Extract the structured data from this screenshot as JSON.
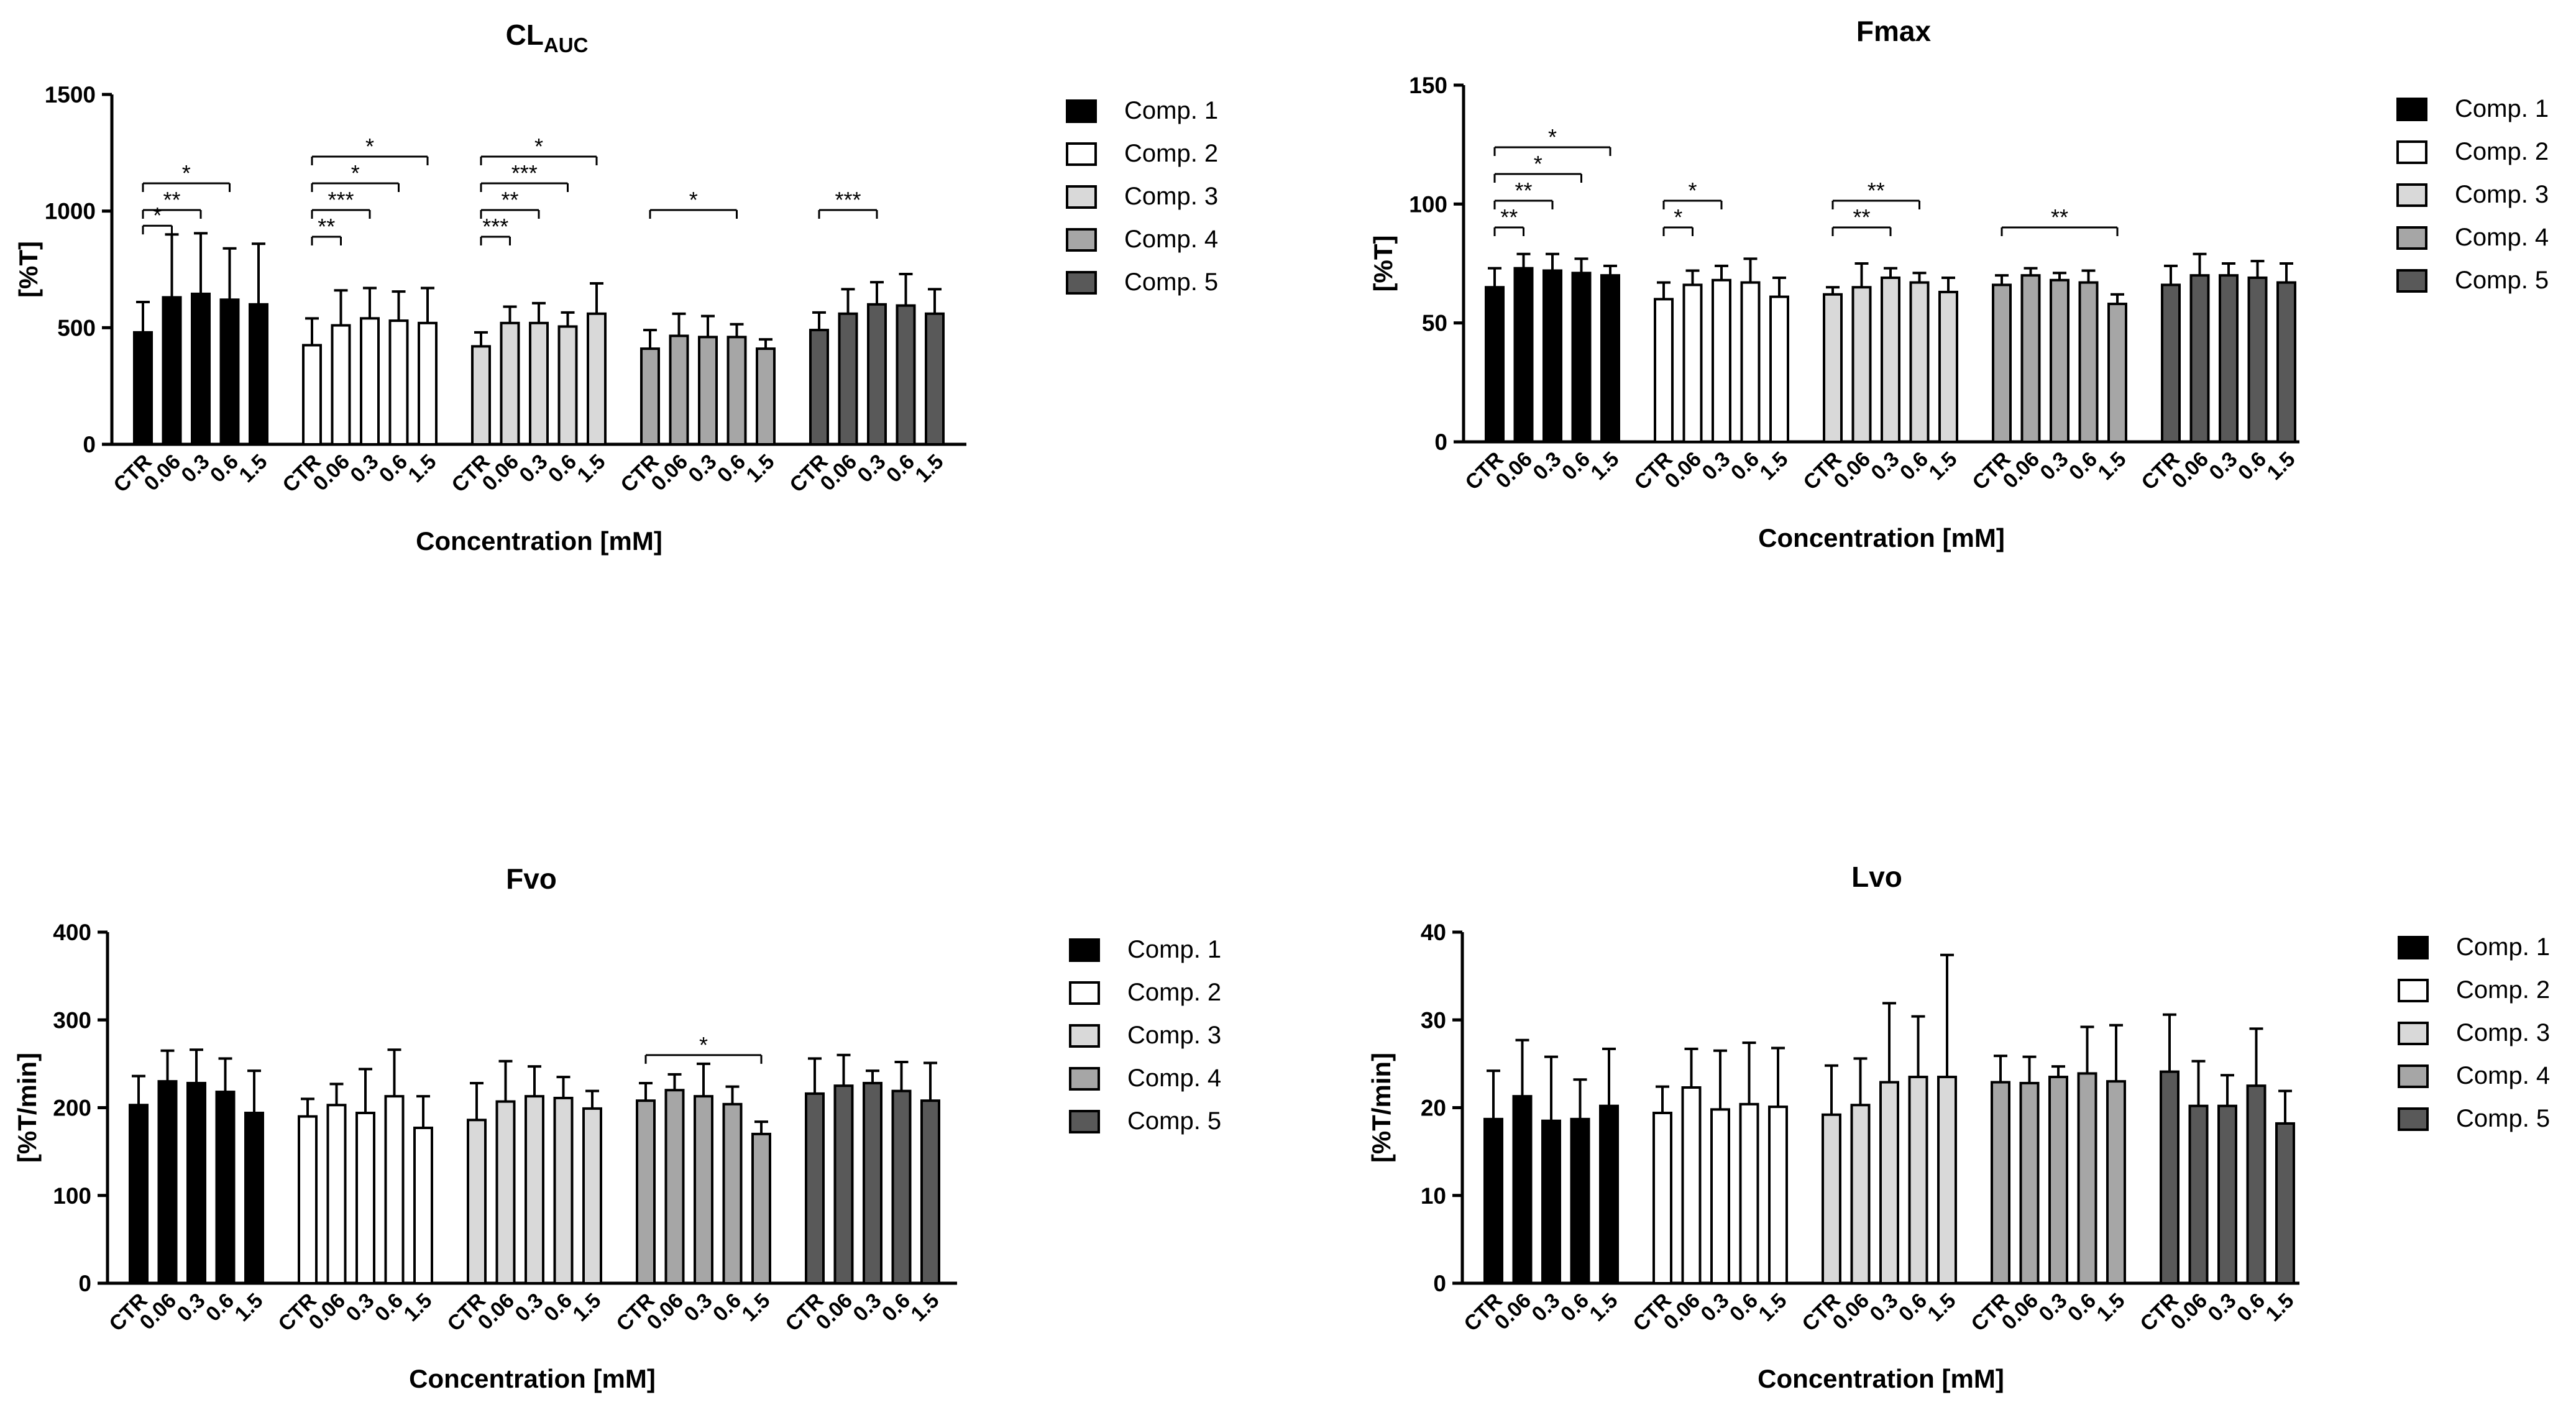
{
  "colors": {
    "Comp. 1": "#000000",
    "Comp. 2": "#ffffff",
    "Comp. 3": "#d9d9d9",
    "Comp. 4": "#a6a6a6",
    "Comp. 5": "#595959"
  },
  "chart_data": [
    {
      "id": "clauc",
      "type": "bar",
      "title_main": "CL",
      "title_sub": "AUC",
      "xlabel": "Concentration [mM]",
      "ylabel": "[%T]",
      "ylim": [
        0,
        1500
      ],
      "yticks": [
        "0",
        "500",
        "1000",
        "1500"
      ],
      "categories": [
        "CTR",
        "0.06",
        "0.3",
        "0.6",
        "1.5"
      ],
      "legend": [
        "Comp. 1",
        "Comp. 2",
        "Comp. 3",
        "Comp. 4",
        "Comp. 5"
      ],
      "series": [
        {
          "name": "Comp. 1",
          "values": [
            480,
            630,
            645,
            620,
            600
          ],
          "errors": [
            130,
            270,
            260,
            220,
            260
          ]
        },
        {
          "name": "Comp. 2",
          "values": [
            425,
            510,
            540,
            530,
            520
          ],
          "errors": [
            115,
            150,
            130,
            125,
            150
          ]
        },
        {
          "name": "Comp. 3",
          "values": [
            420,
            520,
            520,
            505,
            560
          ],
          "errors": [
            60,
            70,
            85,
            60,
            130
          ]
        },
        {
          "name": "Comp. 4",
          "values": [
            410,
            465,
            460,
            460,
            410
          ],
          "errors": [
            80,
            95,
            90,
            55,
            40
          ]
        },
        {
          "name": "Comp. 5",
          "values": [
            490,
            560,
            600,
            595,
            560
          ],
          "errors": [
            75,
            105,
            95,
            135,
            105
          ]
        }
      ],
      "significance": [
        {
          "group": 0,
          "from": 0,
          "to": 1,
          "level": 0,
          "label": "*"
        },
        {
          "group": 0,
          "from": 0,
          "to": 2,
          "level": 1,
          "label": "**"
        },
        {
          "group": 0,
          "from": 0,
          "to": 3,
          "level": 2,
          "label": "*"
        },
        {
          "group": 1,
          "from": 0,
          "to": 1,
          "level": 0,
          "label": "**"
        },
        {
          "group": 1,
          "from": 0,
          "to": 2,
          "level": 1,
          "label": "***"
        },
        {
          "group": 1,
          "from": 0,
          "to": 3,
          "level": 2,
          "label": "*"
        },
        {
          "group": 1,
          "from": 0,
          "to": 4,
          "level": 3,
          "label": "*"
        },
        {
          "group": 2,
          "from": 0,
          "to": 1,
          "level": 0,
          "label": "***"
        },
        {
          "group": 2,
          "from": 0,
          "to": 2,
          "level": 1,
          "label": "**"
        },
        {
          "group": 2,
          "from": 0,
          "to": 3,
          "level": 2,
          "label": "***"
        },
        {
          "group": 2,
          "from": 0,
          "to": 4,
          "level": 3,
          "label": "*"
        },
        {
          "group": 3,
          "from": 0,
          "to": 3,
          "level": 1,
          "label": "*"
        },
        {
          "group": 4,
          "from": 0,
          "to": 2,
          "level": 1,
          "label": "***"
        }
      ]
    },
    {
      "id": "fmax",
      "type": "bar",
      "title_main": "Fmax",
      "title_sub": "",
      "xlabel": "Concentration [mM]",
      "ylabel": "[%T]",
      "ylim": [
        0,
        150
      ],
      "yticks": [
        "0",
        "50",
        "100",
        "150"
      ],
      "categories": [
        "CTR",
        "0.06",
        "0.3",
        "0.6",
        "1.5"
      ],
      "legend": [
        "Comp. 1",
        "Comp. 2",
        "Comp. 3",
        "Comp. 4",
        "Comp. 5"
      ],
      "series": [
        {
          "name": "Comp. 1",
          "values": [
            65,
            73,
            72,
            71,
            70
          ],
          "errors": [
            8,
            6,
            7,
            6,
            4
          ]
        },
        {
          "name": "Comp. 2",
          "values": [
            60,
            66,
            68,
            67,
            61
          ],
          "errors": [
            7,
            6,
            6,
            10,
            8
          ]
        },
        {
          "name": "Comp. 3",
          "values": [
            62,
            65,
            69,
            67,
            63
          ],
          "errors": [
            3,
            10,
            4,
            4,
            6
          ]
        },
        {
          "name": "Comp. 4",
          "values": [
            66,
            70,
            68,
            67,
            58
          ],
          "errors": [
            4,
            3,
            3,
            5,
            4
          ]
        },
        {
          "name": "Comp. 5",
          "values": [
            66,
            70,
            70,
            69,
            67
          ],
          "errors": [
            8,
            9,
            5,
            7,
            8
          ]
        }
      ],
      "significance": [
        {
          "group": 0,
          "from": 0,
          "to": 1,
          "level": 0,
          "label": "**"
        },
        {
          "group": 0,
          "from": 0,
          "to": 2,
          "level": 1,
          "label": "**"
        },
        {
          "group": 0,
          "from": 0,
          "to": 3,
          "level": 2,
          "label": "*"
        },
        {
          "group": 0,
          "from": 0,
          "to": 4,
          "level": 3,
          "label": "*"
        },
        {
          "group": 1,
          "from": 0,
          "to": 1,
          "level": 0,
          "label": "*"
        },
        {
          "group": 1,
          "from": 0,
          "to": 2,
          "level": 1,
          "label": "*"
        },
        {
          "group": 2,
          "from": 0,
          "to": 2,
          "level": 0,
          "label": "**"
        },
        {
          "group": 2,
          "from": 0,
          "to": 3,
          "level": 1,
          "label": "**"
        },
        {
          "group": 3,
          "from": 0,
          "to": 4,
          "level": 0,
          "label": "**"
        }
      ]
    },
    {
      "id": "fvo",
      "type": "bar",
      "title_main": "Fvo",
      "title_sub": "",
      "xlabel": "Concentration [mM]",
      "ylabel": "[%T/min]",
      "ylim": [
        0,
        400
      ],
      "yticks": [
        "0",
        "100",
        "200",
        "300",
        "400"
      ],
      "categories": [
        "CTR",
        "0.06",
        "0.3",
        "0.6",
        "1.5"
      ],
      "legend": [
        "Comp. 1",
        "Comp. 2",
        "Comp. 3",
        "Comp. 4",
        "Comp. 5"
      ],
      "series": [
        {
          "name": "Comp. 1",
          "values": [
            203,
            230,
            228,
            218,
            194
          ],
          "errors": [
            33,
            35,
            38,
            38,
            48
          ]
        },
        {
          "name": "Comp. 2",
          "values": [
            190,
            203,
            194,
            213,
            177
          ],
          "errors": [
            20,
            24,
            50,
            53,
            36
          ]
        },
        {
          "name": "Comp. 3",
          "values": [
            186,
            207,
            213,
            211,
            199
          ],
          "errors": [
            42,
            46,
            34,
            24,
            20
          ]
        },
        {
          "name": "Comp. 4",
          "values": [
            208,
            220,
            213,
            204,
            170
          ],
          "errors": [
            20,
            18,
            37,
            20,
            14
          ]
        },
        {
          "name": "Comp. 5",
          "values": [
            216,
            225,
            228,
            219,
            208
          ],
          "errors": [
            40,
            35,
            14,
            33,
            43
          ]
        }
      ],
      "significance": [
        {
          "group": 3,
          "from": 0,
          "to": 4,
          "level": 0,
          "label": "*"
        }
      ]
    },
    {
      "id": "lvo",
      "type": "bar",
      "title_main": "Lvo",
      "title_sub": "",
      "xlabel": "Concentration [mM]",
      "ylabel": "[%T/min]",
      "ylim": [
        0,
        40
      ],
      "yticks": [
        "0",
        "10",
        "20",
        "30",
        "40"
      ],
      "categories": [
        "CTR",
        "0.06",
        "0.3",
        "0.6",
        "1.5"
      ],
      "legend": [
        "Comp. 1",
        "Comp. 2",
        "Comp. 3",
        "Comp. 4",
        "Comp. 5"
      ],
      "series": [
        {
          "name": "Comp. 1",
          "values": [
            18.7,
            21.3,
            18.5,
            18.7,
            20.2
          ],
          "errors": [
            5.5,
            6.4,
            7.3,
            4.5,
            6.5
          ]
        },
        {
          "name": "Comp. 2",
          "values": [
            19.4,
            22.3,
            19.8,
            20.4,
            20.1
          ],
          "errors": [
            3.0,
            4.4,
            6.7,
            7.0,
            6.7
          ]
        },
        {
          "name": "Comp. 3",
          "values": [
            19.2,
            20.3,
            22.9,
            23.5,
            23.5
          ],
          "errors": [
            5.6,
            5.3,
            9.0,
            6.9,
            13.9
          ]
        },
        {
          "name": "Comp. 4",
          "values": [
            22.9,
            22.8,
            23.5,
            23.9,
            23.0
          ],
          "errors": [
            3.0,
            3.0,
            1.2,
            5.3,
            6.4
          ]
        },
        {
          "name": "Comp. 5",
          "values": [
            24.1,
            20.2,
            20.2,
            22.5,
            18.2
          ],
          "errors": [
            6.5,
            5.1,
            3.5,
            6.5,
            3.7
          ]
        }
      ],
      "significance": []
    }
  ]
}
